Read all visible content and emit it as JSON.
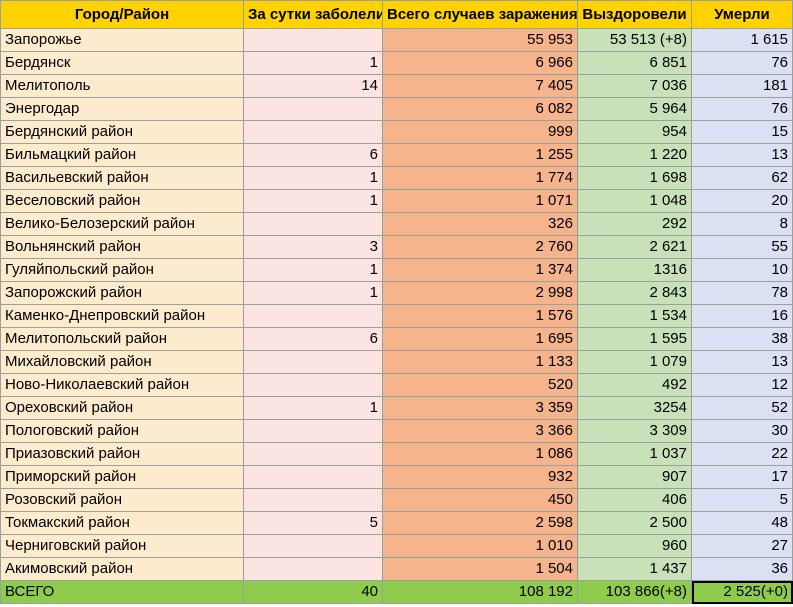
{
  "chart_data": {
    "type": "table",
    "columns": [
      "Город/Район",
      "За сутки заболели",
      "Всего случаев заражения",
      "Выздоровели",
      "Умерли"
    ],
    "rows": [
      [
        "Запорожье",
        "",
        "55 953",
        "53 513 (+8)",
        "1 615"
      ],
      [
        "Бердянск",
        "1",
        "6 966",
        "6 851",
        "76"
      ],
      [
        "Мелитополь",
        "14",
        "7 405",
        "7 036",
        "181"
      ],
      [
        "Энергодар",
        "",
        "6 082",
        "5 964",
        "76"
      ],
      [
        "Бердянский район",
        "",
        "999",
        "954",
        "15"
      ],
      [
        "Бильмацкий район",
        "6",
        "1 255",
        "1 220",
        "13"
      ],
      [
        "Васильевский район",
        "1",
        "1 774",
        "1 698",
        "62"
      ],
      [
        "Веселовский район",
        "1",
        "1 071",
        "1 048",
        "20"
      ],
      [
        "Велико-Белозерский район",
        "",
        "326",
        "292",
        "8"
      ],
      [
        "Вольнянский район",
        "3",
        "2 760",
        "2 621",
        "55"
      ],
      [
        "Гуляйпольский район",
        "1",
        "1 374",
        "1316",
        "10"
      ],
      [
        "Запорожский район",
        "1",
        "2 998",
        "2 843",
        "78"
      ],
      [
        "Каменко-Днепровский район",
        "",
        "1 576",
        "1 534",
        "16"
      ],
      [
        "Мелитопольский район",
        "6",
        "1 695",
        "1 595",
        "38"
      ],
      [
        "Михайловский район",
        "",
        "1 133",
        "1 079",
        "13"
      ],
      [
        "Ново-Николаевский район",
        "",
        "520",
        "492",
        "12"
      ],
      [
        "Ореховский район",
        "1",
        "3 359",
        "3254",
        "52"
      ],
      [
        "Пологовский район",
        "",
        "3 366",
        "3 309",
        "30"
      ],
      [
        "Приазовский район",
        "",
        "1 086",
        "1 037",
        "22"
      ],
      [
        "Приморский район",
        "",
        "932",
        "907",
        "17"
      ],
      [
        "Розовский район",
        "",
        "450",
        "406",
        "5"
      ],
      [
        "Токмакский район",
        "5",
        "2 598",
        "2 500",
        "48"
      ],
      [
        "Черниговский район",
        "",
        "1 010",
        "960",
        "27"
      ],
      [
        "Акимовский район",
        "",
        "1 504",
        "1 437",
        "36"
      ]
    ],
    "total": [
      "ВСЕГО",
      "40",
      "108 192",
      "103 866(+8)",
      "2 525(+0)"
    ]
  }
}
